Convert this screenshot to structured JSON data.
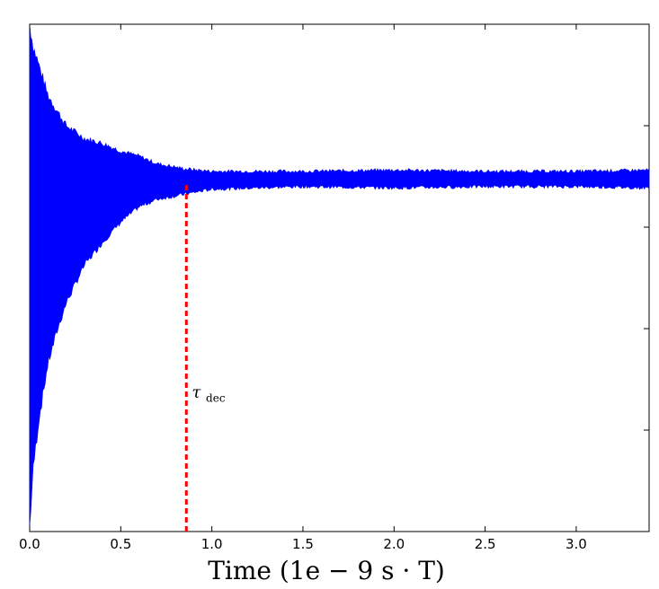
{
  "chart_data": {
    "type": "line",
    "title": "",
    "xlabel": "Time (1e − 9 s · T)",
    "ylabel": "",
    "xlim": [
      0.0,
      3.4
    ],
    "ylim": [
      -1.0,
      1.0
    ],
    "x_ticks": [
      "0.0",
      "0.5",
      "1.0",
      "1.5",
      "2.0",
      "2.5",
      "3.0"
    ],
    "y_ticks_labeled": false,
    "grid": false,
    "legend": "none",
    "series": [
      {
        "color": "#0000ff",
        "envelope": [
          {
            "x": 0.0,
            "y_min": -0.98,
            "y_max": 1.0
          },
          {
            "x": 0.02,
            "y_min": -0.75,
            "y_max": 0.91
          },
          {
            "x": 0.05,
            "y_min": -0.56,
            "y_max": 0.84
          },
          {
            "x": 0.1,
            "y_min": -0.34,
            "y_max": 0.72
          },
          {
            "x": 0.15,
            "y_min": -0.21,
            "y_max": 0.66
          },
          {
            "x": 0.2,
            "y_min": -0.1,
            "y_max": 0.6
          },
          {
            "x": 0.3,
            "y_min": 0.05,
            "y_max": 0.55
          },
          {
            "x": 0.4,
            "y_min": 0.14,
            "y_max": 0.53
          },
          {
            "x": 0.5,
            "y_min": 0.22,
            "y_max": 0.5
          },
          {
            "x": 0.6,
            "y_min": 0.28,
            "y_max": 0.48
          },
          {
            "x": 0.7,
            "y_min": 0.31,
            "y_max": 0.45
          },
          {
            "x": 0.85,
            "y_min": 0.33,
            "y_max": 0.43
          },
          {
            "x": 1.0,
            "y_min": 0.35,
            "y_max": 0.42
          },
          {
            "x": 1.5,
            "y_min": 0.36,
            "y_max": 0.42
          },
          {
            "x": 2.0,
            "y_min": 0.355,
            "y_max": 0.425
          },
          {
            "x": 2.5,
            "y_min": 0.36,
            "y_max": 0.42
          },
          {
            "x": 3.0,
            "y_min": 0.36,
            "y_max": 0.42
          },
          {
            "x": 3.4,
            "y_min": 0.355,
            "y_max": 0.425
          }
        ]
      }
    ],
    "annotations": [
      {
        "type": "vline",
        "x": 0.86,
        "color": "#ff0000",
        "style": "dashed",
        "y_from": -1.0,
        "y_to": 0.38
      },
      {
        "type": "text",
        "x": 0.89,
        "y": -0.47,
        "text_main": "τ",
        "text_sub": "dec"
      }
    ]
  }
}
